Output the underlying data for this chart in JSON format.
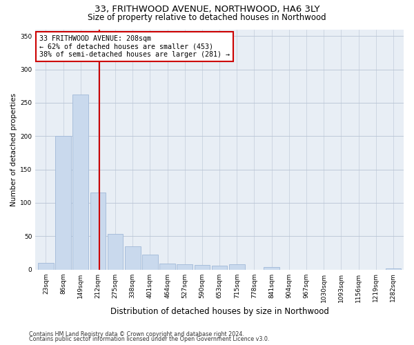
{
  "title": "33, FRITHWOOD AVENUE, NORTHWOOD, HA6 3LY",
  "subtitle": "Size of property relative to detached houses in Northwood",
  "xlabel": "Distribution of detached houses by size in Northwood",
  "ylabel": "Number of detached properties",
  "bar_labels": [
    "23sqm",
    "86sqm",
    "149sqm",
    "212sqm",
    "275sqm",
    "338sqm",
    "401sqm",
    "464sqm",
    "527sqm",
    "590sqm",
    "653sqm",
    "715sqm",
    "778sqm",
    "841sqm",
    "904sqm",
    "967sqm",
    "1030sqm",
    "1093sqm",
    "1156sqm",
    "1219sqm",
    "1282sqm"
  ],
  "bar_values": [
    10,
    200,
    262,
    115,
    53,
    35,
    22,
    9,
    8,
    7,
    6,
    8,
    0,
    4,
    0,
    0,
    0,
    0,
    0,
    0,
    2
  ],
  "bar_color": "#c9d9ed",
  "bar_edgecolor": "#a0b8d8",
  "vline_x": 3.08,
  "vline_color": "#cc0000",
  "annotation_text": "33 FRITHWOOD AVENUE: 208sqm\n← 62% of detached houses are smaller (453)\n38% of semi-detached houses are larger (281) →",
  "annotation_box_color": "#ffffff",
  "annotation_box_edgecolor": "#cc0000",
  "ylim": [
    0,
    360
  ],
  "yticks": [
    0,
    50,
    100,
    150,
    200,
    250,
    300,
    350
  ],
  "plot_bg_color": "#e8eef5",
  "footer1": "Contains HM Land Registry data © Crown copyright and database right 2024.",
  "footer2": "Contains public sector information licensed under the Open Government Licence v3.0.",
  "title_fontsize": 9.5,
  "subtitle_fontsize": 8.5,
  "xlabel_fontsize": 8.5,
  "ylabel_fontsize": 7.5,
  "annot_fontsize": 7.2,
  "tick_fontsize": 6.5,
  "footer_fontsize": 5.8
}
